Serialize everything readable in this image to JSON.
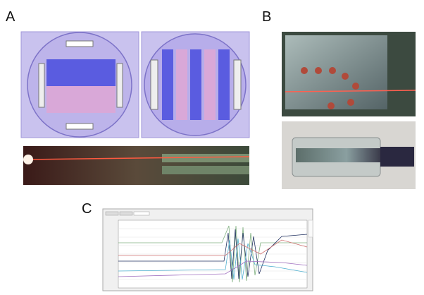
{
  "panels": {
    "a": {
      "label": "A"
    },
    "b": {
      "label": "B"
    },
    "c": {
      "label": "C"
    }
  }
}
